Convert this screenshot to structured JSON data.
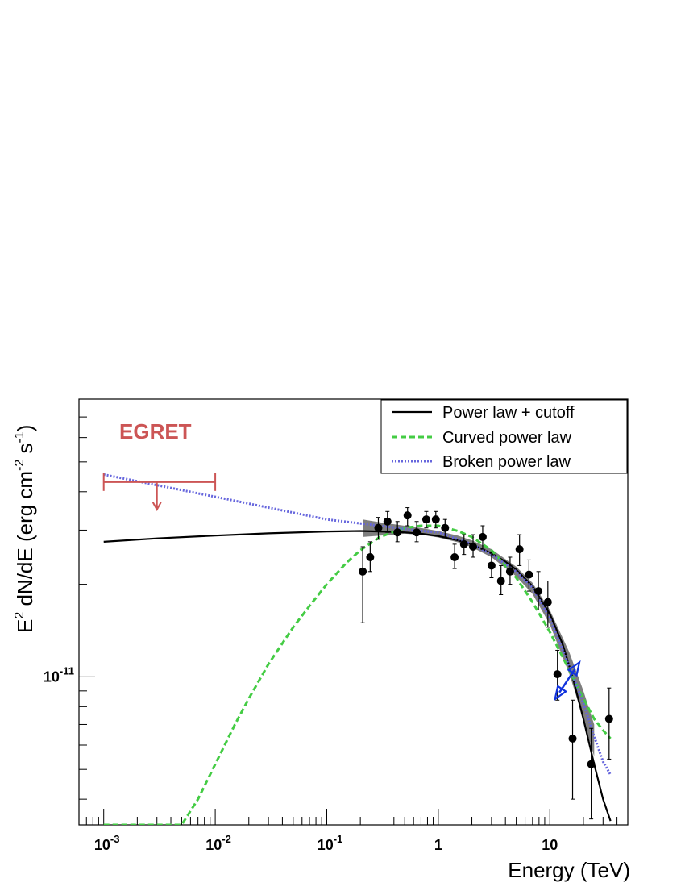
{
  "chart_data": {
    "type": "scatter",
    "x_scale": "log",
    "y_scale": "log",
    "xlim": [
      0.0006,
      50
    ],
    "ylim": [
      3.3e-12,
      8e-11
    ],
    "xlabel": "Energy (TeV)",
    "ylabel_parts": {
      "a": "E",
      "a_sup": "2",
      "b": " dN/dE (erg cm",
      "b_sup": "-2",
      "c": " s",
      "c_sup": "-1",
      "d": ")"
    },
    "x_ticks": [
      {
        "value": 0.001,
        "base": "10",
        "exp": "-3"
      },
      {
        "value": 0.01,
        "base": "10",
        "exp": "-2"
      },
      {
        "value": 0.1,
        "base": "10",
        "exp": "-1"
      },
      {
        "value": 1,
        "base": "1",
        "exp": ""
      },
      {
        "value": 10,
        "base": "10",
        "exp": ""
      }
    ],
    "y_ticks": [
      {
        "value": 1e-11,
        "base": "10",
        "exp": "-11"
      }
    ],
    "legend_position": "top-right",
    "legend": [
      {
        "label": "Power law + cutoff",
        "color": "#000000",
        "style": "solid"
      },
      {
        "label": "Curved power law",
        "color": "#44cc44",
        "style": "dashed"
      },
      {
        "label": "Broken power law",
        "color": "#6666dd",
        "style": "dotted"
      }
    ],
    "egret": {
      "label": "EGRET",
      "color": "#cc5555",
      "x_range": [
        0.001,
        0.01
      ],
      "x_center": 0.003,
      "y_value": 4.3e-11,
      "arrow_to": 3.5e-11
    },
    "points": [
      {
        "x": 0.21,
        "y": 2.2e-11,
        "lo": 1.5e-11,
        "hi": 2.65e-11
      },
      {
        "x": 0.245,
        "y": 2.45e-11,
        "lo": 2.2e-11,
        "hi": 2.75e-11
      },
      {
        "x": 0.29,
        "y": 3.05e-11,
        "lo": 2.8e-11,
        "hi": 3.3e-11
      },
      {
        "x": 0.35,
        "y": 3.2e-11,
        "lo": 2.95e-11,
        "hi": 3.45e-11
      },
      {
        "x": 0.43,
        "y": 2.95e-11,
        "lo": 2.75e-11,
        "hi": 3.2e-11
      },
      {
        "x": 0.53,
        "y": 3.35e-11,
        "lo": 3.1e-11,
        "hi": 3.55e-11
      },
      {
        "x": 0.64,
        "y": 2.95e-11,
        "lo": 2.75e-11,
        "hi": 3.2e-11
      },
      {
        "x": 0.78,
        "y": 3.25e-11,
        "lo": 3.05e-11,
        "hi": 3.45e-11
      },
      {
        "x": 0.95,
        "y": 3.25e-11,
        "lo": 3.05e-11,
        "hi": 3.45e-11
      },
      {
        "x": 1.15,
        "y": 3.05e-11,
        "lo": 2.85e-11,
        "hi": 3.25e-11
      },
      {
        "x": 1.4,
        "y": 2.45e-11,
        "lo": 2.25e-11,
        "hi": 2.7e-11
      },
      {
        "x": 1.7,
        "y": 2.7e-11,
        "lo": 2.5e-11,
        "hi": 2.9e-11
      },
      {
        "x": 2.05,
        "y": 2.65e-11,
        "lo": 2.45e-11,
        "hi": 2.9e-11
      },
      {
        "x": 2.5,
        "y": 2.85e-11,
        "lo": 2.6e-11,
        "hi": 3.1e-11
      },
      {
        "x": 3.0,
        "y": 2.3e-11,
        "lo": 2.1e-11,
        "hi": 2.55e-11
      },
      {
        "x": 3.65,
        "y": 2.05e-11,
        "lo": 1.85e-11,
        "hi": 2.3e-11
      },
      {
        "x": 4.4,
        "y": 2.2e-11,
        "lo": 2e-11,
        "hi": 2.45e-11
      },
      {
        "x": 5.35,
        "y": 2.6e-11,
        "lo": 2.3e-11,
        "hi": 2.9e-11
      },
      {
        "x": 6.5,
        "y": 2.15e-11,
        "lo": 1.9e-11,
        "hi": 2.4e-11
      },
      {
        "x": 7.9,
        "y": 1.9e-11,
        "lo": 1.65e-11,
        "hi": 2.2e-11
      },
      {
        "x": 9.6,
        "y": 1.75e-11,
        "lo": 1.45e-11,
        "hi": 2.05e-11
      },
      {
        "x": 11.7,
        "y": 1.02e-11,
        "lo": 8.4e-12,
        "hi": 1.22e-11
      },
      {
        "x": 16.0,
        "y": 6.3e-12,
        "lo": 4e-12,
        "hi": 8.4e-12
      },
      {
        "x": 23.5,
        "y": 5.2e-12,
        "lo": 3.45e-12,
        "hi": 6.8e-12
      },
      {
        "x": 34.0,
        "y": 7.3e-12,
        "lo": 5.4e-12,
        "hi": 9.2e-12
      }
    ],
    "series": [
      {
        "name": "Power law + cutoff",
        "color": "#000000",
        "style": "solid",
        "x": [
          0.001,
          0.003,
          0.01,
          0.03,
          0.1,
          0.2,
          0.3,
          0.5,
          0.7,
          1,
          1.5,
          2,
          3,
          4,
          5,
          7,
          10,
          13,
          16,
          20,
          25,
          30,
          35
        ],
        "y": [
          2.75e-11,
          2.82e-11,
          2.88e-11,
          2.93e-11,
          2.97e-11,
          2.98e-11,
          2.97e-11,
          2.95e-11,
          2.92e-11,
          2.87e-11,
          2.78e-11,
          2.7e-11,
          2.52e-11,
          2.37e-11,
          2.23e-11,
          1.97e-11,
          1.6e-11,
          1.28e-11,
          1e-11,
          7.3e-12,
          5.2e-12,
          4e-12,
          3.4e-12
        ]
      },
      {
        "name": "Curved power law",
        "color": "#44cc44",
        "style": "dashed",
        "x": [
          0.001,
          0.005,
          0.007,
          0.01,
          0.015,
          0.02,
          0.03,
          0.05,
          0.07,
          0.1,
          0.15,
          0.2,
          0.3,
          0.5,
          0.7,
          1,
          1.5,
          2,
          3,
          5,
          7,
          10,
          15,
          20,
          25,
          30,
          35
        ],
        "y": [
          3.3e-12,
          3.3e-12,
          4e-12,
          5.2e-12,
          7e-12,
          8.5e-12,
          1.1e-11,
          1.45e-11,
          1.7e-11,
          2e-11,
          2.35e-11,
          2.58e-11,
          2.85e-11,
          3.05e-11,
          3.1e-11,
          3.1e-11,
          2.98e-11,
          2.85e-11,
          2.58e-11,
          2.1e-11,
          1.75e-11,
          1.4e-11,
          1.05e-11,
          8.5e-12,
          7.3e-12,
          6.7e-12,
          6.3e-12
        ]
      },
      {
        "name": "Broken power law",
        "color": "#6666dd",
        "style": "dotted",
        "x": [
          0.001,
          0.01,
          0.1,
          0.3,
          0.6,
          1,
          2,
          3,
          5,
          7,
          10,
          15,
          20,
          25,
          30,
          35
        ],
        "y": [
          4.55e-11,
          3.85e-11,
          3.25e-11,
          3.1e-11,
          3e-11,
          2.95e-11,
          2.7e-11,
          2.5e-11,
          2.2e-11,
          1.95e-11,
          1.55e-11,
          1.08e-11,
          8.2e-12,
          6.4e-12,
          5.3e-12,
          4.8e-12
        ]
      }
    ],
    "band": {
      "color": "#707070",
      "x": [
        0.21,
        0.3,
        0.5,
        0.7,
        1,
        1.5,
        2,
        3,
        5,
        7,
        10,
        15,
        20,
        25
      ],
      "upper": [
        3.25e-11,
        3.18e-11,
        3.1e-11,
        3.05e-11,
        2.98e-11,
        2.88e-11,
        2.78e-11,
        2.6e-11,
        2.28e-11,
        2.02e-11,
        1.65e-11,
        1.2e-11,
        9e-12,
        7e-12
      ],
      "lower": [
        2.85e-11,
        2.88e-11,
        2.92e-11,
        2.9e-11,
        2.84e-11,
        2.74e-11,
        2.64e-11,
        2.45e-11,
        2.12e-11,
        1.86e-11,
        1.48e-11,
        1.02e-11,
        7.3e-12,
        5.5e-12
      ]
    },
    "blue_marker": {
      "color": "#1133dd",
      "x1": 12.2,
      "y1": 8.9e-12,
      "x2": 16.8,
      "y2": 1.06e-11
    }
  }
}
